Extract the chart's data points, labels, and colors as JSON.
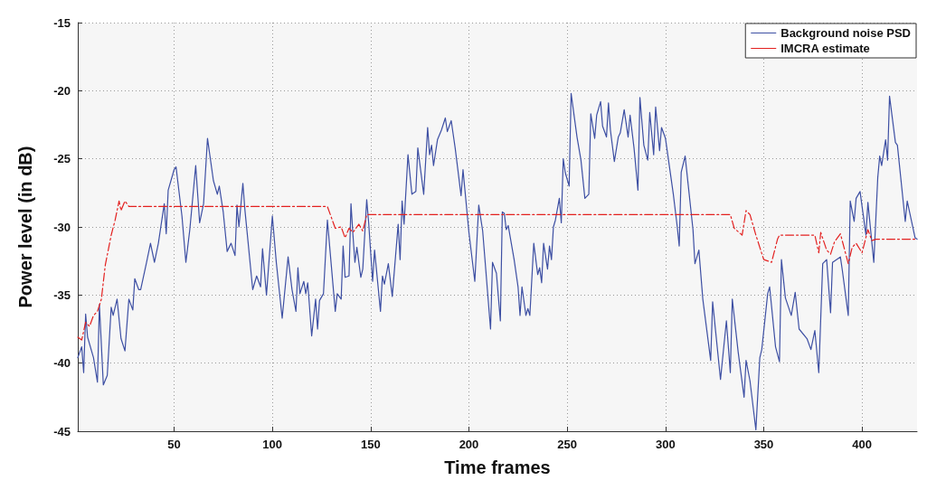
{
  "chart_data": {
    "type": "line",
    "xlabel": "Time frames",
    "ylabel": "Power level (in dB)",
    "xlim": [
      1,
      428
    ],
    "xticks": [
      50,
      100,
      150,
      200,
      250,
      300,
      350,
      400
    ],
    "ylim": [
      -45,
      -15
    ],
    "yticks": [
      -45,
      -40,
      -35,
      -30,
      -25,
      -20,
      -15
    ],
    "grid": true,
    "legend": "top right",
    "marker": "none",
    "series": [
      {
        "name": "Background noise PSD",
        "color": "#3d4fa3",
        "line_style": "solid",
        "x": [
          1,
          3,
          4,
          5,
          6,
          9,
          11,
          12,
          14,
          16,
          18,
          19,
          21,
          23,
          25,
          27,
          29,
          30,
          32,
          33,
          36,
          38,
          40,
          42,
          45,
          46,
          47,
          50,
          51,
          54,
          56,
          58,
          61,
          63,
          65,
          67,
          70,
          72,
          73,
          75,
          77,
          79,
          81,
          82,
          83,
          85,
          86,
          90,
          92,
          94,
          95,
          97,
          100,
          102,
          105,
          108,
          110,
          112,
          113,
          114,
          116,
          117,
          118,
          120,
          122,
          123,
          124,
          126,
          128,
          132,
          133,
          135,
          136,
          137,
          139,
          140,
          141,
          142,
          143,
          145,
          146,
          148,
          149,
          151,
          152,
          155,
          156,
          157,
          159,
          161,
          164,
          165,
          166,
          167,
          169,
          171,
          173,
          174,
          177,
          179,
          180,
          181,
          182,
          184,
          186,
          188,
          189,
          191,
          193,
          196,
          197,
          200,
          203,
          205,
          207,
          211,
          212,
          214,
          216,
          217,
          218,
          219,
          220,
          223,
          225,
          226,
          227,
          229,
          230,
          231,
          233,
          235,
          236,
          237,
          238,
          240,
          241,
          242,
          243,
          244,
          246,
          247,
          248,
          249,
          251,
          252,
          255,
          257,
          259,
          261,
          262,
          264,
          265,
          267,
          268,
          270,
          271,
          272,
          274,
          276,
          277,
          279,
          281,
          282,
          284,
          286,
          287,
          289,
          291,
          292,
          294,
          295,
          297,
          298,
          300,
          304,
          306,
          307,
          308,
          310,
          314,
          315,
          317,
          319,
          323,
          324,
          328,
          331,
          333,
          334,
          337,
          340,
          341,
          343,
          346,
          348,
          349,
          352,
          353,
          356,
          358,
          359,
          361,
          364,
          366,
          368,
          372,
          374,
          376,
          378,
          380,
          382,
          384,
          385,
          389,
          390,
          393,
          394,
          396,
          397,
          399,
          402,
          403,
          406,
          408,
          409,
          410,
          412,
          413,
          414,
          417,
          418,
          422,
          423,
          427,
          428
        ],
        "values": [
          -39.6,
          -38.8,
          -40.7,
          -36.4,
          -38.1,
          -39.6,
          -41.4,
          -35.7,
          -41.6,
          -40.9,
          -35.9,
          -36.5,
          -35.3,
          -38.2,
          -39.1,
          -35.3,
          -36.1,
          -33.8,
          -34.6,
          -34.6,
          -32.6,
          -31.2,
          -32.6,
          -31.2,
          -28.3,
          -30.5,
          -27.3,
          -25.8,
          -25.6,
          -29.2,
          -32.6,
          -30.2,
          -25.5,
          -29.7,
          -28.3,
          -23.5,
          -26.6,
          -27.6,
          -27.0,
          -28.9,
          -31.8,
          -31.2,
          -32.1,
          -28.4,
          -30.0,
          -26.8,
          -28.7,
          -34.6,
          -33.6,
          -34.4,
          -31.6,
          -35.0,
          -29.2,
          -32.6,
          -36.7,
          -32.2,
          -34.6,
          -36.2,
          -33.0,
          -34.9,
          -34.0,
          -34.9,
          -34.1,
          -38.0,
          -35.3,
          -37.5,
          -35.4,
          -34.9,
          -29.5,
          -36.2,
          -34.9,
          -35.3,
          -31.4,
          -33.7,
          -33.6,
          -28.3,
          -30.6,
          -32.6,
          -31.5,
          -33.7,
          -33.1,
          -28.0,
          -29.7,
          -34.0,
          -31.7,
          -36.2,
          -33.6,
          -34.2,
          -32.7,
          -35.1,
          -29.8,
          -32.4,
          -28.1,
          -29.8,
          -24.7,
          -27.6,
          -27.4,
          -24.2,
          -27.6,
          -22.7,
          -24.7,
          -24.0,
          -25.5,
          -23.6,
          -22.9,
          -22.0,
          -23.0,
          -22.2,
          -24.2,
          -27.7,
          -25.8,
          -30.4,
          -34.0,
          -28.4,
          -30.3,
          -37.5,
          -32.6,
          -33.4,
          -36.9,
          -28.9,
          -29.0,
          -30.2,
          -29.9,
          -32.4,
          -34.4,
          -36.5,
          -34.4,
          -36.5,
          -36.0,
          -36.5,
          -31.2,
          -33.5,
          -33.0,
          -34.1,
          -31.2,
          -33.1,
          -31.4,
          -32.4,
          -30.0,
          -29.5,
          -27.9,
          -29.7,
          -25.0,
          -26.0,
          -27.0,
          -20.2,
          -23.4,
          -25.1,
          -27.9,
          -27.6,
          -21.7,
          -23.5,
          -21.8,
          -20.8,
          -22.6,
          -23.4,
          -20.9,
          -22.9,
          -25.2,
          -23.4,
          -23.1,
          -21.4,
          -23.4,
          -21.8,
          -24.2,
          -27.3,
          -20.5,
          -24.0,
          -25.1,
          -21.6,
          -24.7,
          -21.2,
          -24.4,
          -22.7,
          -23.5,
          -27.6,
          -30.0,
          -31.4,
          -26.0,
          -24.8,
          -30.2,
          -32.7,
          -31.7,
          -35.3,
          -39.8,
          -35.5,
          -41.2,
          -36.9,
          -40.7,
          -35.3,
          -39.2,
          -42.5,
          -39.8,
          -41.3,
          -44.9,
          -39.6,
          -39.0,
          -34.9,
          -34.4,
          -38.8,
          -39.9,
          -32.4,
          -35.2,
          -36.5,
          -34.8,
          -37.5,
          -38.2,
          -39.0,
          -37.6,
          -40.7,
          -32.7,
          -32.4,
          -36.3,
          -32.6,
          -32.2,
          -33.2,
          -36.5,
          -28.1,
          -29.6,
          -27.9,
          -27.4,
          -30.6,
          -28.2,
          -32.6,
          -26.4,
          -24.8,
          -25.5,
          -23.6,
          -25.1,
          -20.4,
          -23.8,
          -24.0,
          -29.6,
          -28.1,
          -30.8,
          -30.9
        ]
      },
      {
        "name": "IMCRA estimate",
        "color": "#e3201f",
        "line_style": "dashed",
        "x": [
          1,
          3,
          5,
          7,
          9,
          11,
          13,
          15,
          18,
          20,
          22,
          23,
          25,
          27,
          128,
          132,
          135,
          137,
          139,
          141,
          144,
          146,
          148,
          333,
          335,
          339,
          341,
          343,
          346,
          350,
          354,
          357,
          358,
          376,
          378,
          379,
          382,
          384,
          386,
          389,
          393,
          395,
          397,
          400,
          403,
          405,
          407,
          428
        ],
        "values": [
          -38.1,
          -38.3,
          -37.0,
          -37.3,
          -36.5,
          -36.2,
          -35.3,
          -32.8,
          -30.6,
          -29.5,
          -28.1,
          -28.8,
          -28.1,
          -28.5,
          -28.5,
          -30.1,
          -30.0,
          -30.8,
          -30.1,
          -30.4,
          -29.8,
          -30.3,
          -29.1,
          -29.1,
          -30.1,
          -30.6,
          -28.8,
          -29.1,
          -30.6,
          -32.4,
          -32.6,
          -30.9,
          -30.6,
          -30.6,
          -31.9,
          -30.4,
          -31.7,
          -32.0,
          -31.1,
          -30.5,
          -32.7,
          -31.5,
          -31.2,
          -31.9,
          -30.2,
          -31.0,
          -30.9,
          -30.9
        ]
      }
    ]
  }
}
